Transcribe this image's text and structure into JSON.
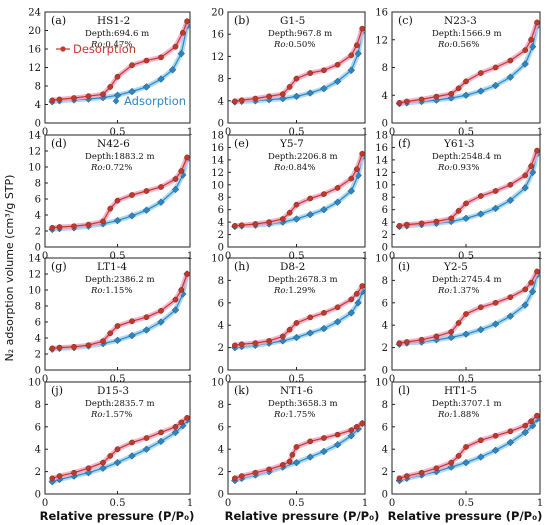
{
  "figure": {
    "x_axis_title": "Relative pressure (P/P₀)",
    "y_axis_title": "N₂ adsorption volume (cm³/g STP)",
    "legend": {
      "desorption": "Desorption",
      "adsorption": "Adsorption"
    },
    "colors": {
      "desorption": "#c0392b",
      "adsorption": "#2e86c1",
      "desorption_glow": "#f4a6c8",
      "adsorption_glow": "#9fd3f0"
    },
    "depth_prefix": "Depth:",
    "ro_prefix": "Ro:"
  },
  "chart_data": [
    {
      "type": "line",
      "panel": "(a)",
      "sample": "HS1-2",
      "depth": "694.6 m",
      "ro": "0.47%",
      "xlim": [
        0,
        1
      ],
      "ylim": [
        0,
        24
      ],
      "yticks": [
        0,
        4,
        8,
        12,
        16,
        20,
        24
      ],
      "xticks": [
        0,
        0.5,
        1
      ],
      "series": [
        {
          "name": "Adsorption",
          "x": [
            0.05,
            0.1,
            0.2,
            0.3,
            0.4,
            0.5,
            0.6,
            0.7,
            0.8,
            0.88,
            0.94,
            0.98
          ],
          "y": [
            4.6,
            4.8,
            5.0,
            5.2,
            5.5,
            6.0,
            6.8,
            7.8,
            9.5,
            11.5,
            15.0,
            21.0
          ]
        },
        {
          "name": "Desorption",
          "x": [
            0.98,
            0.95,
            0.9,
            0.8,
            0.7,
            0.6,
            0.5,
            0.45,
            0.4,
            0.3,
            0.2,
            0.1,
            0.05
          ],
          "y": [
            22.0,
            19.5,
            16.5,
            14.2,
            13.5,
            12.5,
            10.0,
            7.8,
            6.2,
            5.8,
            5.4,
            5.1,
            4.9
          ]
        }
      ]
    },
    {
      "type": "line",
      "panel": "(b)",
      "sample": "G1-5",
      "depth": "967.8 m",
      "ro": "0.50%",
      "xlim": [
        0,
        1
      ],
      "ylim": [
        0,
        20
      ],
      "yticks": [
        0,
        4,
        8,
        12,
        16,
        20
      ],
      "xticks": [
        0,
        0.5,
        1
      ],
      "series": [
        {
          "name": "Adsorption",
          "x": [
            0.05,
            0.1,
            0.2,
            0.3,
            0.4,
            0.5,
            0.6,
            0.7,
            0.8,
            0.9,
            0.95,
            0.98
          ],
          "y": [
            3.8,
            3.9,
            4.0,
            4.2,
            4.4,
            4.8,
            5.4,
            6.2,
            7.5,
            9.5,
            12.5,
            16.5
          ]
        },
        {
          "name": "Desorption",
          "x": [
            0.98,
            0.94,
            0.9,
            0.8,
            0.7,
            0.6,
            0.5,
            0.45,
            0.4,
            0.3,
            0.2,
            0.1,
            0.05
          ],
          "y": [
            17.0,
            14.0,
            12.2,
            10.5,
            9.5,
            9.0,
            8.0,
            6.5,
            5.2,
            4.8,
            4.4,
            4.1,
            3.9
          ]
        }
      ]
    },
    {
      "type": "line",
      "panel": "(c)",
      "sample": "N23-3",
      "depth": "1566.9 m",
      "ro": "0.56%",
      "xlim": [
        0,
        1
      ],
      "ylim": [
        0,
        16
      ],
      "yticks": [
        0,
        4,
        8,
        12,
        16
      ],
      "xticks": [
        0,
        0.5,
        1
      ],
      "series": [
        {
          "name": "Adsorption",
          "x": [
            0.05,
            0.1,
            0.2,
            0.3,
            0.4,
            0.5,
            0.6,
            0.7,
            0.8,
            0.9,
            0.95,
            0.98
          ],
          "y": [
            2.8,
            2.9,
            3.1,
            3.3,
            3.6,
            4.0,
            4.6,
            5.4,
            6.6,
            8.5,
            11.0,
            14.0
          ]
        },
        {
          "name": "Desorption",
          "x": [
            0.98,
            0.94,
            0.9,
            0.8,
            0.7,
            0.6,
            0.5,
            0.45,
            0.4,
            0.3,
            0.2,
            0.1,
            0.05
          ],
          "y": [
            14.5,
            12.0,
            10.5,
            9.0,
            8.0,
            7.2,
            6.0,
            5.0,
            4.2,
            3.8,
            3.4,
            3.1,
            2.9
          ]
        }
      ]
    },
    {
      "type": "line",
      "panel": "(d)",
      "sample": "N42-6",
      "depth": "1883.2 m",
      "ro": "0.72%",
      "xlim": [
        0,
        1
      ],
      "ylim": [
        0,
        14
      ],
      "yticks": [
        0,
        2,
        4,
        6,
        8,
        10,
        12,
        14
      ],
      "xticks": [
        0,
        0.5,
        1
      ],
      "series": [
        {
          "name": "Adsorption",
          "x": [
            0.05,
            0.1,
            0.2,
            0.3,
            0.4,
            0.5,
            0.6,
            0.7,
            0.8,
            0.9,
            0.95,
            0.98
          ],
          "y": [
            2.2,
            2.3,
            2.4,
            2.6,
            2.9,
            3.3,
            3.9,
            4.6,
            5.6,
            7.2,
            9.0,
            11.0
          ]
        },
        {
          "name": "Desorption",
          "x": [
            0.98,
            0.94,
            0.9,
            0.8,
            0.7,
            0.6,
            0.5,
            0.45,
            0.4,
            0.3,
            0.2,
            0.1,
            0.05
          ],
          "y": [
            11.2,
            9.5,
            8.5,
            7.5,
            7.0,
            6.5,
            5.8,
            4.8,
            3.2,
            2.8,
            2.6,
            2.5,
            2.4
          ]
        }
      ]
    },
    {
      "type": "line",
      "panel": "(e)",
      "sample": "Y5-7",
      "depth": "2206.8 m",
      "ro": "0.84%",
      "xlim": [
        0,
        1
      ],
      "ylim": [
        0,
        18
      ],
      "yticks": [
        0,
        2,
        4,
        6,
        8,
        10,
        12,
        14,
        16,
        18
      ],
      "xticks": [
        0,
        0.5,
        1
      ],
      "series": [
        {
          "name": "Adsorption",
          "x": [
            0.05,
            0.1,
            0.2,
            0.3,
            0.4,
            0.5,
            0.6,
            0.7,
            0.8,
            0.9,
            0.95,
            0.98
          ],
          "y": [
            3.3,
            3.4,
            3.5,
            3.7,
            4.0,
            4.5,
            5.2,
            6.0,
            7.2,
            9.0,
            11.5,
            14.5
          ]
        },
        {
          "name": "Desorption",
          "x": [
            0.98,
            0.94,
            0.9,
            0.8,
            0.7,
            0.6,
            0.5,
            0.45,
            0.4,
            0.3,
            0.2,
            0.1,
            0.05
          ],
          "y": [
            15.0,
            12.5,
            11.0,
            9.5,
            8.5,
            7.8,
            6.8,
            5.5,
            4.5,
            4.0,
            3.7,
            3.5,
            3.4
          ]
        }
      ]
    },
    {
      "type": "line",
      "panel": "(f)",
      "sample": "Y61-3",
      "depth": "2548.4 m",
      "ro": "0.93%",
      "xlim": [
        0,
        1
      ],
      "ylim": [
        0,
        18
      ],
      "yticks": [
        0,
        2,
        4,
        6,
        8,
        10,
        12,
        14,
        16,
        18
      ],
      "xticks": [
        0,
        0.5,
        1
      ],
      "series": [
        {
          "name": "Adsorption",
          "x": [
            0.05,
            0.1,
            0.2,
            0.3,
            0.4,
            0.5,
            0.6,
            0.7,
            0.8,
            0.9,
            0.95,
            0.98
          ],
          "y": [
            3.3,
            3.4,
            3.6,
            3.8,
            4.1,
            4.6,
            5.3,
            6.2,
            7.5,
            9.5,
            12.0,
            15.0
          ]
        },
        {
          "name": "Desorption",
          "x": [
            0.98,
            0.94,
            0.9,
            0.8,
            0.7,
            0.6,
            0.5,
            0.45,
            0.4,
            0.3,
            0.2,
            0.1,
            0.05
          ],
          "y": [
            15.5,
            13.0,
            11.5,
            10.0,
            9.0,
            8.2,
            7.0,
            5.8,
            4.6,
            4.1,
            3.8,
            3.6,
            3.4
          ]
        }
      ]
    },
    {
      "type": "line",
      "panel": "(g)",
      "sample": "LT1-4",
      "depth": "2386.2 m",
      "ro": "1.15%",
      "xlim": [
        0,
        1
      ],
      "ylim": [
        0,
        14
      ],
      "yticks": [
        0,
        2,
        4,
        6,
        8,
        10,
        12,
        14
      ],
      "xticks": [
        0,
        0.5,
        1
      ],
      "series": [
        {
          "name": "Adsorption",
          "x": [
            0.05,
            0.1,
            0.2,
            0.3,
            0.4,
            0.5,
            0.6,
            0.7,
            0.8,
            0.9,
            0.95,
            0.98
          ],
          "y": [
            2.6,
            2.7,
            2.8,
            3.0,
            3.3,
            3.7,
            4.3,
            5.0,
            6.0,
            7.5,
            9.5,
            12.0
          ]
        },
        {
          "name": "Desorption",
          "x": [
            0.98,
            0.94,
            0.9,
            0.8,
            0.7,
            0.6,
            0.5,
            0.45,
            0.4,
            0.3,
            0.2,
            0.1,
            0.05
          ],
          "y": [
            12.0,
            10.0,
            8.8,
            7.4,
            6.6,
            6.1,
            5.5,
            4.6,
            3.6,
            3.1,
            2.9,
            2.8,
            2.7
          ]
        }
      ]
    },
    {
      "type": "line",
      "panel": "(h)",
      "sample": "D8-2",
      "depth": "2678.3 m",
      "ro": "1.29%",
      "xlim": [
        0,
        1
      ],
      "ylim": [
        0,
        10
      ],
      "yticks": [
        0,
        2,
        4,
        6,
        8,
        10
      ],
      "xticks": [
        0,
        0.5,
        1
      ],
      "series": [
        {
          "name": "Adsorption",
          "x": [
            0.05,
            0.1,
            0.2,
            0.3,
            0.4,
            0.5,
            0.6,
            0.7,
            0.8,
            0.9,
            0.95,
            0.98
          ],
          "y": [
            2.0,
            2.1,
            2.2,
            2.4,
            2.6,
            2.9,
            3.3,
            3.7,
            4.3,
            5.1,
            6.0,
            7.0
          ]
        },
        {
          "name": "Desorption",
          "x": [
            0.98,
            0.94,
            0.9,
            0.8,
            0.7,
            0.6,
            0.5,
            0.45,
            0.4,
            0.3,
            0.2,
            0.1,
            0.05
          ],
          "y": [
            7.5,
            6.8,
            6.3,
            5.6,
            5.1,
            4.7,
            4.2,
            3.6,
            3.0,
            2.6,
            2.4,
            2.3,
            2.2
          ]
        }
      ]
    },
    {
      "type": "line",
      "panel": "(i)",
      "sample": "Y2-5",
      "depth": "2745.4 m",
      "ro": "1.37%",
      "xlim": [
        0,
        1
      ],
      "ylim": [
        0,
        10
      ],
      "yticks": [
        0,
        2,
        4,
        6,
        8,
        10
      ],
      "xticks": [
        0,
        0.5,
        1
      ],
      "series": [
        {
          "name": "Adsorption",
          "x": [
            0.05,
            0.1,
            0.2,
            0.3,
            0.4,
            0.5,
            0.6,
            0.7,
            0.8,
            0.9,
            0.95,
            0.98
          ],
          "y": [
            2.3,
            2.4,
            2.5,
            2.7,
            2.9,
            3.2,
            3.6,
            4.1,
            4.8,
            5.8,
            7.0,
            8.5
          ]
        },
        {
          "name": "Desorption",
          "x": [
            0.98,
            0.94,
            0.9,
            0.8,
            0.7,
            0.6,
            0.5,
            0.45,
            0.4,
            0.3,
            0.2,
            0.1,
            0.05
          ],
          "y": [
            8.8,
            7.8,
            7.2,
            6.5,
            6.0,
            5.6,
            5.0,
            4.2,
            3.4,
            3.0,
            2.7,
            2.5,
            2.4
          ]
        }
      ]
    },
    {
      "type": "line",
      "panel": "(j)",
      "sample": "D15-3",
      "depth": "2835.7 m",
      "ro": "1.57%",
      "xlim": [
        0,
        1
      ],
      "ylim": [
        0,
        10
      ],
      "yticks": [
        0,
        2,
        4,
        6,
        8,
        10
      ],
      "xticks": [
        0,
        0.5,
        1
      ],
      "series": [
        {
          "name": "Adsorption",
          "x": [
            0.05,
            0.1,
            0.2,
            0.3,
            0.4,
            0.5,
            0.6,
            0.7,
            0.8,
            0.9,
            0.95,
            0.98
          ],
          "y": [
            1.1,
            1.3,
            1.6,
            1.9,
            2.3,
            2.8,
            3.4,
            4.0,
            4.7,
            5.5,
            6.1,
            6.6
          ]
        },
        {
          "name": "Desorption",
          "x": [
            0.98,
            0.94,
            0.9,
            0.8,
            0.7,
            0.6,
            0.5,
            0.45,
            0.4,
            0.3,
            0.2,
            0.1,
            0.05
          ],
          "y": [
            6.8,
            6.4,
            6.0,
            5.5,
            5.0,
            4.6,
            4.0,
            3.4,
            2.8,
            2.3,
            1.9,
            1.6,
            1.4
          ]
        }
      ]
    },
    {
      "type": "line",
      "panel": "(k)",
      "sample": "NT1-6",
      "depth": "3658.3 m",
      "ro": "1.75%",
      "xlim": [
        0,
        1
      ],
      "ylim": [
        0,
        10
      ],
      "yticks": [
        0,
        2,
        4,
        6,
        8,
        10
      ],
      "xticks": [
        0,
        0.5,
        1
      ],
      "series": [
        {
          "name": "Adsorption",
          "x": [
            0.05,
            0.1,
            0.2,
            0.3,
            0.4,
            0.5,
            0.6,
            0.7,
            0.8,
            0.9,
            0.95,
            0.98
          ],
          "y": [
            1.2,
            1.4,
            1.7,
            2.0,
            2.4,
            2.8,
            3.3,
            3.8,
            4.4,
            5.2,
            5.8,
            6.3
          ]
        },
        {
          "name": "Desorption",
          "x": [
            0.98,
            0.94,
            0.9,
            0.8,
            0.7,
            0.6,
            0.5,
            0.47,
            0.45,
            0.4,
            0.3,
            0.2,
            0.1,
            0.05
          ],
          "y": [
            6.3,
            6.0,
            5.7,
            5.3,
            5.0,
            4.7,
            4.2,
            3.5,
            2.9,
            2.6,
            2.2,
            1.9,
            1.6,
            1.4
          ]
        }
      ]
    },
    {
      "type": "line",
      "panel": "(l)",
      "sample": "HT1-5",
      "depth": "3707.1 m",
      "ro": "1.88%",
      "xlim": [
        0,
        1
      ],
      "ylim": [
        0,
        10
      ],
      "yticks": [
        0,
        2,
        4,
        6,
        8,
        10
      ],
      "xticks": [
        0,
        0.5,
        1
      ],
      "series": [
        {
          "name": "Adsorption",
          "x": [
            0.05,
            0.1,
            0.2,
            0.3,
            0.4,
            0.5,
            0.6,
            0.7,
            0.8,
            0.9,
            0.95,
            0.98
          ],
          "y": [
            1.2,
            1.4,
            1.7,
            2.0,
            2.4,
            2.8,
            3.3,
            3.9,
            4.6,
            5.5,
            6.1,
            6.7
          ]
        },
        {
          "name": "Desorption",
          "x": [
            0.98,
            0.94,
            0.9,
            0.8,
            0.7,
            0.6,
            0.5,
            0.45,
            0.4,
            0.3,
            0.2,
            0.1,
            0.05
          ],
          "y": [
            7.0,
            6.5,
            6.1,
            5.6,
            5.2,
            4.8,
            4.2,
            3.4,
            2.8,
            2.3,
            1.9,
            1.6,
            1.4
          ]
        }
      ]
    }
  ]
}
